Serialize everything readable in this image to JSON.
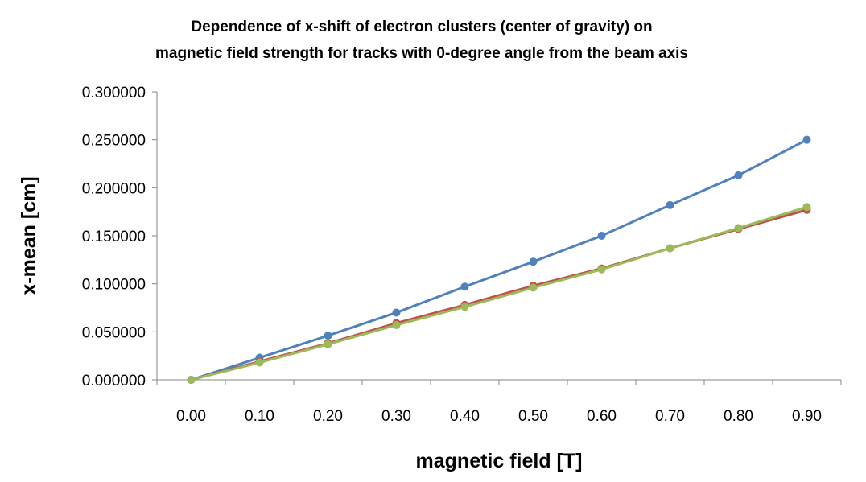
{
  "chart_data": {
    "type": "line",
    "title": [
      "Dependence of x-shift of electron clusters (center of gravity) on",
      "magnetic field strength for tracks with 0-degree angle from the beam axis"
    ],
    "xlabel": "magnetic field [T]",
    "ylabel": "x-mean [cm]",
    "categories": [
      "0.00",
      "0.10",
      "0.20",
      "0.30",
      "0.40",
      "0.50",
      "0.60",
      "0.70",
      "0.80",
      "0.90"
    ],
    "x": [
      0.0,
      0.1,
      0.2,
      0.3,
      0.4,
      0.5,
      0.6,
      0.7,
      0.8,
      0.9
    ],
    "ylim": [
      0,
      0.3
    ],
    "yticks": [
      "0.000000",
      "0.050000",
      "0.100000",
      "0.150000",
      "0.200000",
      "0.250000",
      "0.300000"
    ],
    "grid": false,
    "legend": "none",
    "series": [
      {
        "color": "#4F81BD",
        "values": [
          0.0,
          0.023,
          0.046,
          0.07,
          0.097,
          0.123,
          0.15,
          0.182,
          0.213,
          0.25
        ]
      },
      {
        "color": "#C0504D",
        "values": [
          0.0,
          0.019,
          0.038,
          0.059,
          0.078,
          0.098,
          0.116,
          0.137,
          0.157,
          0.177
        ]
      },
      {
        "color": "#9BBB59",
        "values": [
          0.0,
          0.018,
          0.037,
          0.057,
          0.076,
          0.096,
          0.115,
          0.137,
          0.158,
          0.18
        ]
      }
    ]
  }
}
